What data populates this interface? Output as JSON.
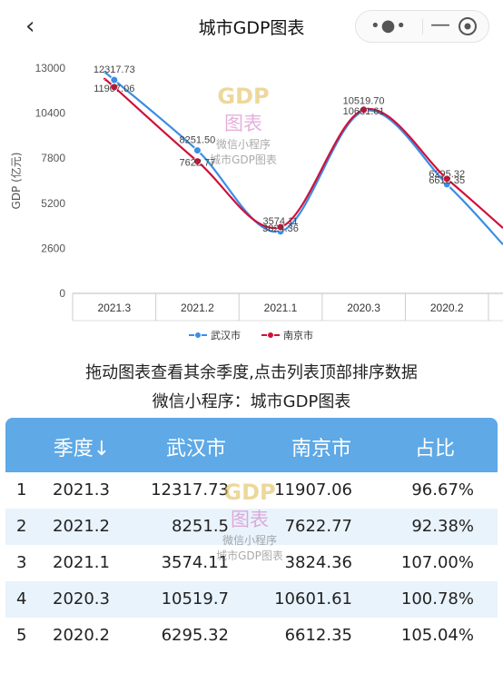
{
  "nav": {
    "title": "城市GDP图表",
    "back_glyph": "‹",
    "more_glyph": "•●•",
    "minimize_glyph": "—"
  },
  "chart_data": {
    "type": "line",
    "categories": [
      "2021.3",
      "2021.2",
      "2021.1",
      "2020.3",
      "2020.2"
    ],
    "series": [
      {
        "name": "武汉市",
        "values": [
          12317.73,
          8251.5,
          3574.11,
          10519.7,
          6295.32
        ],
        "color": "#3a8ee6"
      },
      {
        "name": "南京市",
        "values": [
          11907.06,
          7622.77,
          3824.36,
          10601.61,
          6612.35
        ],
        "color": "#d0103a"
      }
    ],
    "data_labels": {
      "武汉市": [
        "12317.73",
        "8251.50",
        "3574.11",
        "10519.70",
        "6295.32"
      ],
      "南京市": [
        "11907.06",
        "7622.77",
        "3824.36",
        "10601.61",
        "6612.35"
      ]
    },
    "ylabel": "GDP (亿元)",
    "yticks": [
      "13000",
      "10400",
      "7800",
      "5200",
      "2600",
      "0"
    ],
    "ylim": [
      0,
      13000
    ],
    "legend_position": "bottom",
    "grid": false
  },
  "watermark": {
    "brand": "GDP",
    "brand_cn": "图表",
    "line1": "微信小程序",
    "line2": "城市GDP图表"
  },
  "hints": {
    "drag": "拖动图表查看其余季度,点击列表顶部排序数据",
    "miniapp": "微信小程序：城市GDP图表"
  },
  "table": {
    "headers": [
      "季度↓",
      "武汉市",
      "南京市",
      "占比"
    ],
    "rows": [
      {
        "idx": "1",
        "quarter": "2021.3",
        "wuhan": "12317.73",
        "nanjing": "11907.06",
        "ratio": "96.67%"
      },
      {
        "idx": "2",
        "quarter": "2021.2",
        "wuhan": "8251.5",
        "nanjing": "7622.77",
        "ratio": "92.38%"
      },
      {
        "idx": "3",
        "quarter": "2021.1",
        "wuhan": "3574.11",
        "nanjing": "3824.36",
        "ratio": "107.00%"
      },
      {
        "idx": "4",
        "quarter": "2020.3",
        "wuhan": "10519.7",
        "nanjing": "10601.61",
        "ratio": "100.78%"
      },
      {
        "idx": "5",
        "quarter": "2020.2",
        "wuhan": "6295.32",
        "nanjing": "6612.35",
        "ratio": "105.04%"
      }
    ]
  }
}
